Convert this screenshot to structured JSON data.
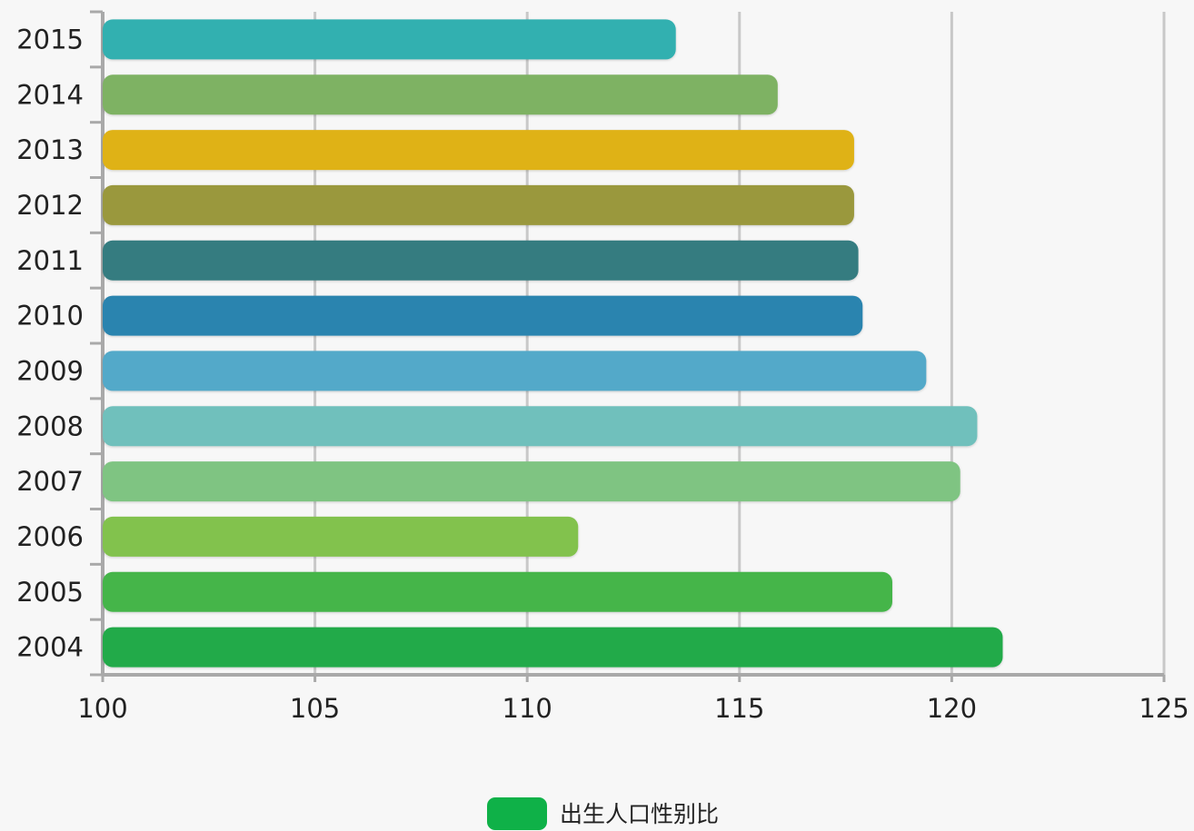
{
  "chart_data": {
    "type": "bar",
    "orientation": "horizontal",
    "title": "",
    "xlabel": "",
    "ylabel": "",
    "xlim": [
      100,
      125
    ],
    "x_ticks": [
      "100",
      "105",
      "110",
      "115",
      "120",
      "125"
    ],
    "categories": [
      "2015",
      "2014",
      "2013",
      "2012",
      "2011",
      "2010",
      "2009",
      "2008",
      "2007",
      "2006",
      "2005",
      "2004"
    ],
    "series": [
      {
        "name": "出生人口性别比",
        "values": [
          113.5,
          115.9,
          117.7,
          117.7,
          117.8,
          117.9,
          119.4,
          120.6,
          120.2,
          111.2,
          118.6,
          121.2
        ],
        "colors": [
          "#31b0b0",
          "#7eb264",
          "#dfb217",
          "#9a983c",
          "#367b80",
          "#2984af",
          "#53a9c9",
          "#70c0bc",
          "#7fc482",
          "#82c24d",
          "#44b54a",
          "#20aa48"
        ]
      }
    ],
    "grid": "vertical",
    "legend_position": "bottom-center",
    "legend_color": "#0fb148"
  }
}
